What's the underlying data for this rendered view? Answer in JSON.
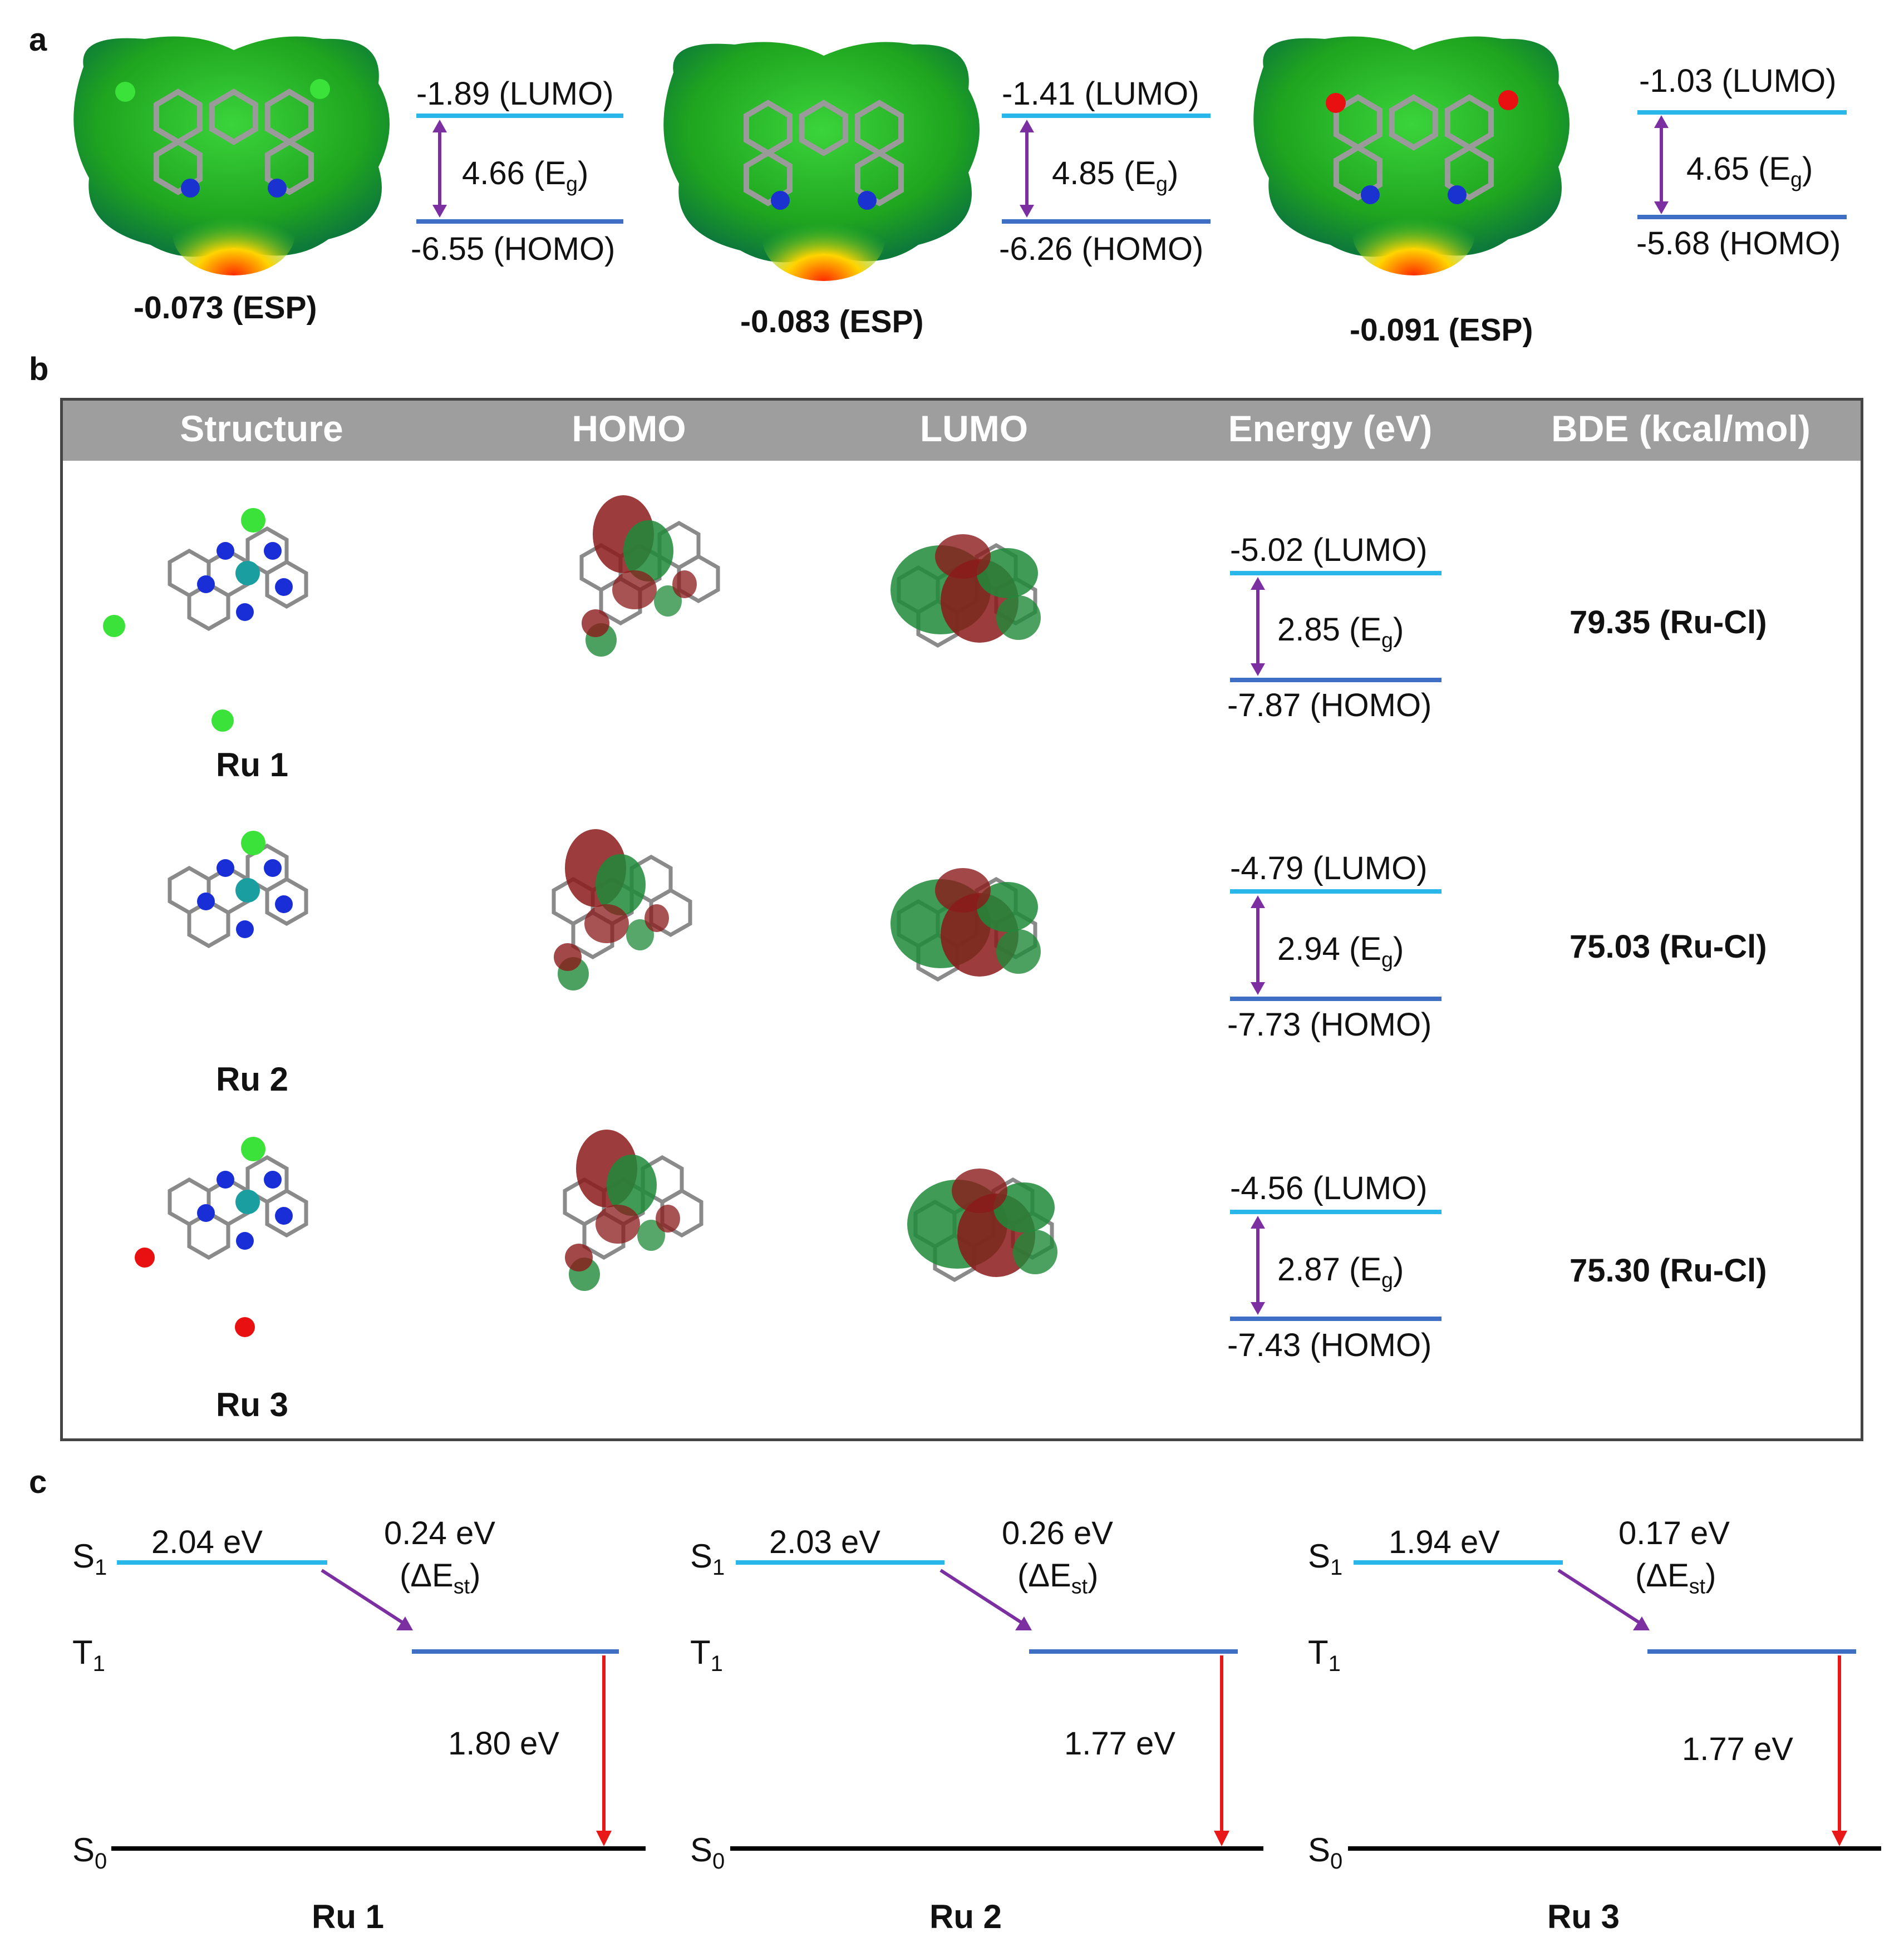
{
  "panel_a": {
    "letter": "a",
    "items": [
      {
        "lumo": "-1.89 (LUMO)",
        "gap_num": "4.66 (E",
        "gap_sub": "g",
        "gap_close": ")",
        "homo": "-6.55 (HOMO)",
        "esp": "-0.073 (ESP)"
      },
      {
        "lumo": "-1.41 (LUMO)",
        "gap_num": "4.85 (E",
        "gap_sub": "g",
        "gap_close": ")",
        "homo": "-6.26 (HOMO)",
        "esp": "-0.083 (ESP)"
      },
      {
        "lumo": "-1.03 (LUMO)",
        "gap_num": "4.65 (E",
        "gap_sub": "g",
        "gap_close": ")",
        "homo": "-5.68 (HOMO)",
        "esp": "-0.091 (ESP)"
      }
    ]
  },
  "panel_b": {
    "letter": "b",
    "headers": [
      "Structure",
      "HOMO",
      "LUMO",
      "Energy (eV)",
      "BDE (kcal/mol)"
    ],
    "rows": [
      {
        "name": "Ru 1",
        "lumo": "-5.02 (LUMO)",
        "gap_num": "2.85 (E",
        "gap_sub": "g",
        "gap_close": ")",
        "homo": "-7.87 (HOMO)",
        "bde": "79.35 (Ru-Cl)"
      },
      {
        "name": "Ru 2",
        "lumo": "-4.79 (LUMO)",
        "gap_num": "2.94 (E",
        "gap_sub": "g",
        "gap_close": ")",
        "homo": "-7.73 (HOMO)",
        "bde": "75.03 (Ru-Cl)"
      },
      {
        "name": "Ru 3",
        "lumo": "-4.56 (LUMO)",
        "gap_num": "2.87 (E",
        "gap_sub": "g",
        "gap_close": ")",
        "homo": "-7.43 (HOMO)",
        "bde": "75.30 (Ru-Cl)"
      }
    ]
  },
  "panel_c": {
    "letter": "c",
    "state_letters": {
      "s1": "S",
      "s1_sub": "1",
      "t1": "T",
      "t1_sub": "1",
      "s0": "S",
      "s0_sub": "0"
    },
    "diagrams": [
      {
        "name": "Ru 1",
        "s1_energy": "2.04 eV",
        "dest": "0.24 eV",
        "dest_label_pre": "(ΔE",
        "dest_label_sub": "st",
        "dest_label_post": ")",
        "t1_energy": "1.80 eV"
      },
      {
        "name": "Ru 2",
        "s1_energy": "2.03 eV",
        "dest": "0.26 eV",
        "dest_label_pre": "(ΔE",
        "dest_label_sub": "st",
        "dest_label_post": ")",
        "t1_energy": "1.77 eV"
      },
      {
        "name": "Ru 3",
        "s1_energy": "1.94 eV",
        "dest": "0.17 eV",
        "dest_label_pre": "(ΔE",
        "dest_label_sub": "st",
        "dest_label_post": ")",
        "t1_energy": "1.77 eV"
      }
    ]
  },
  "colors": {
    "lumo_line": "#29b6e8",
    "homo_line": "#3f6fc4",
    "gap_arrow": "#7b2fa0",
    "emission_arrow": "#e81818",
    "ground_line": "#000000",
    "header_bg": "#9e9e9e"
  }
}
